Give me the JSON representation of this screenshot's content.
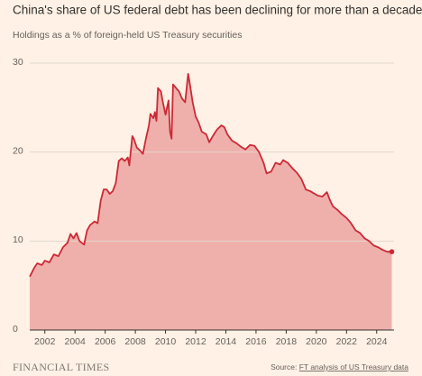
{
  "chart_data": {
    "type": "area",
    "title": "China's share of US federal debt has been declining for more than a decade",
    "subtitle": "Holdings as a % of foreign-held US Treasury securities",
    "x": [
      2001.0,
      2001.3,
      2001.5,
      2001.8,
      2002.0,
      2002.3,
      2002.6,
      2002.9,
      2003.2,
      2003.5,
      2003.7,
      2003.9,
      2004.1,
      2004.3,
      2004.6,
      2004.8,
      2005.0,
      2005.3,
      2005.5,
      2005.7,
      2005.9,
      2006.1,
      2006.3,
      2006.5,
      2006.7,
      2006.9,
      2007.1,
      2007.3,
      2007.5,
      2007.6,
      2007.8,
      2007.9,
      2008.1,
      2008.3,
      2008.5,
      2008.7,
      2008.9,
      2009.0,
      2009.2,
      2009.3,
      2009.4,
      2009.5,
      2009.7,
      2009.8,
      2010.0,
      2010.2,
      2010.3,
      2010.4,
      2010.5,
      2010.7,
      2010.9,
      2011.1,
      2011.3,
      2011.5,
      2011.6,
      2011.8,
      2012.0,
      2012.2,
      2012.4,
      2012.7,
      2012.9,
      2013.1,
      2013.4,
      2013.7,
      2013.9,
      2014.1,
      2014.4,
      2014.7,
      2015.0,
      2015.3,
      2015.6,
      2015.9,
      2016.2,
      2016.5,
      2016.7,
      2017.0,
      2017.3,
      2017.6,
      2017.8,
      2018.1,
      2018.4,
      2018.7,
      2019.0,
      2019.3,
      2019.6,
      2019.8,
      2020.1,
      2020.4,
      2020.7,
      2020.9,
      2021.1,
      2021.4,
      2021.7,
      2022.0,
      2022.3,
      2022.6,
      2022.9,
      2023.2,
      2023.5,
      2023.8,
      2024.1,
      2024.4,
      2024.7,
      2025.0
    ],
    "values": [
      6.0,
      7.0,
      7.5,
      7.3,
      7.8,
      7.6,
      8.5,
      8.3,
      9.3,
      9.8,
      10.8,
      10.3,
      10.9,
      10.0,
      9.6,
      11.2,
      11.8,
      12.2,
      12.0,
      14.5,
      15.8,
      15.8,
      15.3,
      15.6,
      16.5,
      19.0,
      19.3,
      19.0,
      19.4,
      18.5,
      21.8,
      21.5,
      20.5,
      20.2,
      19.8,
      21.5,
      23.0,
      24.3,
      23.8,
      24.5,
      23.5,
      27.2,
      26.8,
      25.8,
      24.2,
      25.8,
      22.3,
      21.5,
      27.6,
      27.2,
      26.8,
      26.0,
      25.6,
      28.8,
      27.8,
      25.6,
      24.0,
      23.3,
      22.3,
      22.0,
      21.1,
      21.7,
      22.5,
      23.0,
      22.8,
      22.0,
      21.3,
      21.0,
      20.6,
      20.3,
      20.8,
      20.7,
      20.0,
      18.8,
      17.6,
      17.8,
      18.8,
      18.6,
      19.1,
      18.8,
      18.2,
      17.7,
      17.0,
      15.8,
      15.6,
      15.4,
      15.1,
      15.0,
      15.5,
      14.6,
      13.9,
      13.5,
      13.0,
      12.6,
      12.0,
      11.2,
      10.9,
      10.3,
      10.0,
      9.5,
      9.3,
      9.0,
      8.8,
      8.8
    ],
    "color": "#cc2936",
    "fill_color": "#efb0ac",
    "xlim": [
      2001.0,
      2025.15
    ],
    "xticks": [
      2002,
      2004,
      2006,
      2008,
      2010,
      2012,
      2014,
      2016,
      2018,
      2020,
      2022,
      2024
    ],
    "ylim": [
      0,
      30
    ],
    "yticks": [
      0,
      10,
      20,
      30
    ],
    "grid": true,
    "end_marker": true,
    "footer": {
      "brand": "FINANCIAL TIMES",
      "source_label": "Source:",
      "source_link": "FT analysis of US Treasury data"
    }
  }
}
